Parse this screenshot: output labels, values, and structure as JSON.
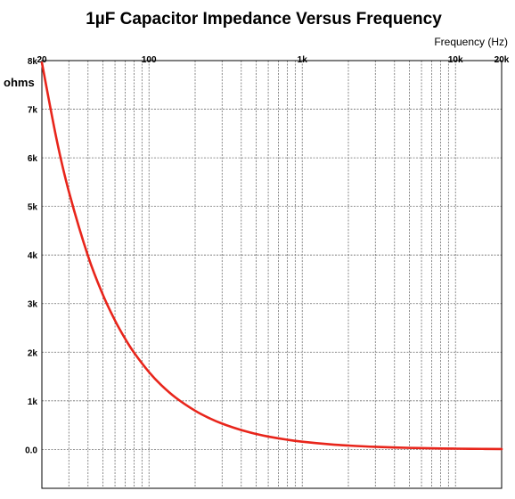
{
  "chart_data": {
    "type": "line",
    "title": "1µF Capacitor Impedance Versus Frequency",
    "xlabel": "Frequency  (Hz)",
    "ylabel": "ohms",
    "x_scale": "log",
    "xlim": [
      20,
      20000
    ],
    "ylim": [
      -800,
      8000
    ],
    "x_ticks": [
      {
        "value": 20,
        "label": "20"
      },
      {
        "value": 100,
        "label": "100"
      },
      {
        "value": 1000,
        "label": "1k"
      },
      {
        "value": 10000,
        "label": "10k"
      },
      {
        "value": 20000,
        "label": "20k"
      }
    ],
    "y_ticks": [
      {
        "value": 8000,
        "label": "8k"
      },
      {
        "value": 7000,
        "label": "7k"
      },
      {
        "value": 6000,
        "label": "6k"
      },
      {
        "value": 5000,
        "label": "5k"
      },
      {
        "value": 4000,
        "label": "4k"
      },
      {
        "value": 3000,
        "label": "3k"
      },
      {
        "value": 2000,
        "label": "2k"
      },
      {
        "value": 1000,
        "label": "1k"
      },
      {
        "value": 0,
        "label": "0.0"
      }
    ],
    "grid": true,
    "series": [
      {
        "color": "#e8251b",
        "x": [
          20,
          25,
          30,
          40,
          50,
          60,
          70,
          80,
          100,
          120,
          150,
          200,
          250,
          300,
          400,
          500,
          600,
          800,
          1000,
          1500,
          2000,
          3000,
          5000,
          8000,
          10000,
          15000,
          20000
        ],
        "y": [
          7958,
          6366,
          5305,
          3979,
          3183,
          2653,
          2274,
          1989,
          1592,
          1326,
          1061,
          796,
          637,
          531,
          398,
          318,
          265,
          199,
          159,
          106,
          80,
          53,
          32,
          20,
          16,
          11,
          8
        ]
      }
    ]
  }
}
